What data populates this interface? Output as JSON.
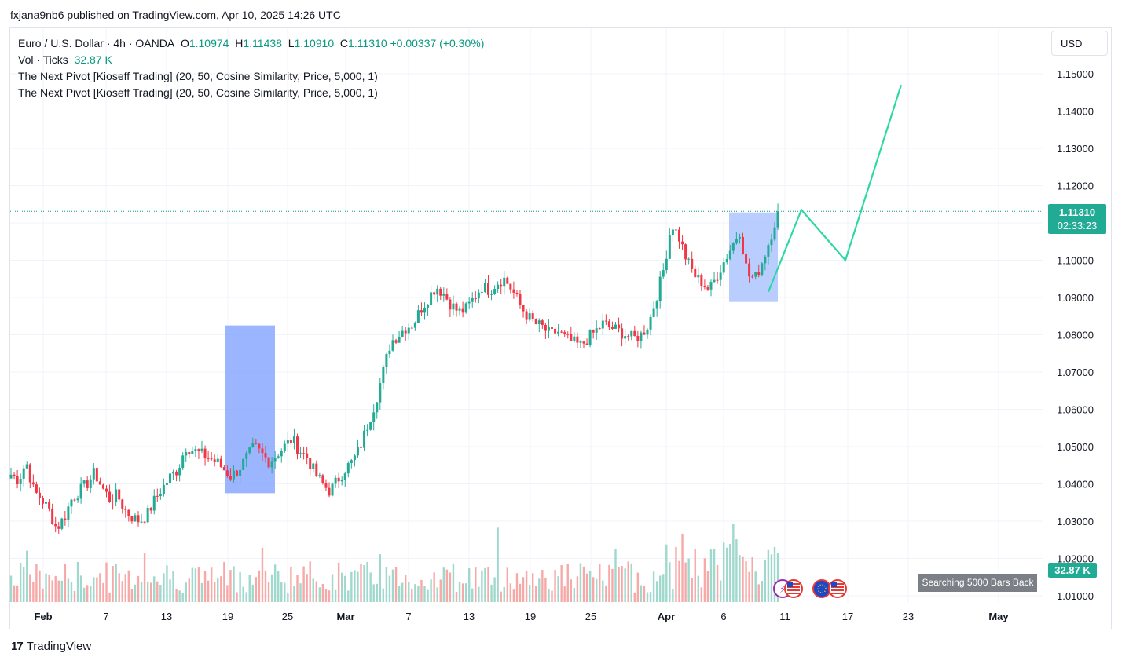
{
  "header": {
    "published": "fxjana9nb6 published on TradingView.com, Apr 10, 2025 14:26 UTC"
  },
  "legend": {
    "symbol": "Euro / U.S. Dollar · 4h · OANDA",
    "open_label": "O",
    "open": "1.10974",
    "high_label": "H",
    "high": "1.11438",
    "low_label": "L",
    "low": "1.10910",
    "close_label": "C",
    "close": "1.11310",
    "change": "+0.00337 (+0.30%)",
    "vol_label": "Vol · Ticks",
    "vol_value": "32.87 K",
    "indicator_1": "The Next Pivot [Kioseff Trading] (20, 50, Cosine Similarity, Price, 5,000, 1)",
    "indicator_2": "The Next Pivot [Kioseff Trading] (20, 50, Cosine Similarity, Price, 5,000, 1)"
  },
  "currency_button": "USD",
  "last_price": {
    "price": "1.11310",
    "countdown": "02:33:23"
  },
  "volume_tag": "32.87 K",
  "search_badge": "Searching 5000 Bars Back",
  "brand": {
    "name": "TradingView",
    "logo": "17"
  },
  "colors": {
    "up": "#22ab94",
    "down": "#f23645",
    "vol_up": "#9fd8cc",
    "vol_down": "#f7a9a7",
    "projection": "#2ed8a4",
    "box": "#8aa8ff",
    "box_light": "#b3c8ff",
    "grid": "#f0f3fa",
    "dotted": "#089981"
  },
  "icons": [
    "lightning-flag-icon",
    "us-flag-icon",
    "eu-flag-icon",
    "us-flag-icon"
  ],
  "chart_data": {
    "type": "candlestick",
    "symbol": "EURUSD",
    "timeframe": "4h",
    "ylim": [
      1.008,
      1.1535
    ],
    "y_ticks": [
      "1.15000",
      "1.14000",
      "1.13000",
      "1.12000",
      "1.11000",
      "1.10000",
      "1.09000",
      "1.08000",
      "1.07000",
      "1.06000",
      "1.05000",
      "1.04000",
      "1.03000",
      "1.02000",
      "1.01000"
    ],
    "x_tick_labels": [
      "Feb",
      "7",
      "13",
      "19",
      "25",
      "Mar",
      "7",
      "13",
      "19",
      "25",
      "Apr",
      "6",
      "11",
      "17",
      "23",
      "May"
    ],
    "price_path": [
      [
        1.0425,
        1.041,
        1.046,
        1.038,
        1.036,
        1.033,
        1.028,
        1.031,
        1.036,
        1.038,
        1.04,
        1.043,
        1.039,
        1.036,
        1.037
      ],
      [
        1.033,
        1.031,
        1.03,
        1.032,
        1.036,
        1.039,
        1.042,
        1.044,
        1.05,
        1.049,
        1.048,
        1.047,
        1.046,
        1.044,
        1.042
      ],
      [
        1.044,
        1.047,
        1.05,
        1.048,
        1.046,
        1.048,
        1.05,
        1.052,
        1.049,
        1.047,
        1.043,
        1.04,
        1.038,
        1.041,
        1.044
      ],
      [
        1.046,
        1.05,
        1.056,
        1.062,
        1.07,
        1.078,
        1.08,
        1.082,
        1.083,
        1.087,
        1.09,
        1.093,
        1.091,
        1.088,
        1.086
      ],
      [
        1.087,
        1.09,
        1.093,
        1.092,
        1.094,
        1.095,
        1.092,
        1.088,
        1.085,
        1.083,
        1.082,
        1.08,
        1.081,
        1.079,
        1.078
      ],
      [
        1.077,
        1.079,
        1.081,
        1.083,
        1.082,
        1.081,
        1.08,
        1.079,
        1.08,
        1.083,
        1.09,
        1.098,
        1.11,
        1.106,
        1.1
      ],
      [
        1.096,
        1.094,
        1.092,
        1.096,
        1.1,
        1.104,
        1.108,
        1.096,
        1.095,
        1.1,
        1.106,
        1.1131
      ]
    ],
    "volume_range": [
      "low",
      "high"
    ],
    "projection": [
      {
        "date": "Apr 10",
        "price": 1.0915
      },
      {
        "date": "Apr 13",
        "price": 1.1135
      },
      {
        "date": "Apr 17",
        "price": 1.1
      },
      {
        "date": "Apr 22",
        "price": 1.147
      }
    ],
    "boxes": [
      {
        "from": "Feb 19",
        "to": "Feb 23",
        "low": 1.0375,
        "high": 1.0825
      },
      {
        "from": "Apr 6",
        "to": "Apr 10",
        "low": 1.0888,
        "high": 1.1128
      }
    ],
    "last_close": 1.1131,
    "grid": true
  }
}
